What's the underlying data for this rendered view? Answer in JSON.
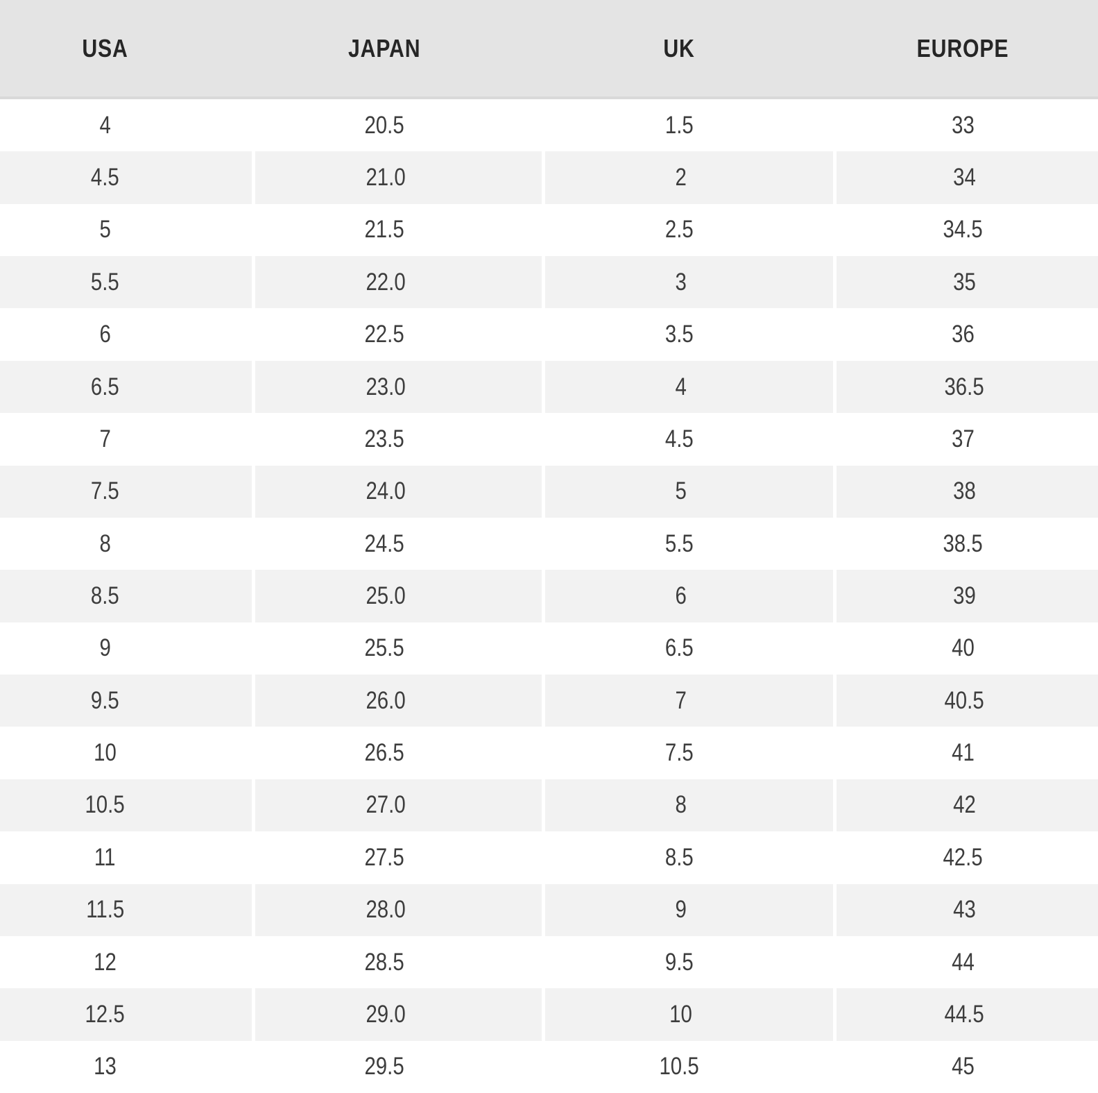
{
  "table": {
    "headers": [
      "USA",
      "JAPAN",
      "UK",
      "EUROPE"
    ],
    "rows": [
      [
        "4",
        "20.5",
        "1.5",
        "33"
      ],
      [
        "4.5",
        "21.0",
        "2",
        "34"
      ],
      [
        "5",
        "21.5",
        "2.5",
        "34.5"
      ],
      [
        "5.5",
        "22.0",
        "3",
        "35"
      ],
      [
        "6",
        "22.5",
        "3.5",
        "36"
      ],
      [
        "6.5",
        "23.0",
        "4",
        "36.5"
      ],
      [
        "7",
        "23.5",
        "4.5",
        "37"
      ],
      [
        "7.5",
        "24.0",
        "5",
        "38"
      ],
      [
        "8",
        "24.5",
        "5.5",
        "38.5"
      ],
      [
        "8.5",
        "25.0",
        "6",
        "39"
      ],
      [
        "9",
        "25.5",
        "6.5",
        "40"
      ],
      [
        "9.5",
        "26.0",
        "7",
        "40.5"
      ],
      [
        "10",
        "26.5",
        "7.5",
        "41"
      ],
      [
        "10.5",
        "27.0",
        "8",
        "42"
      ],
      [
        "11",
        "27.5",
        "8.5",
        "42.5"
      ],
      [
        "11.5",
        "28.0",
        "9",
        "43"
      ],
      [
        "12",
        "28.5",
        "9.5",
        "44"
      ],
      [
        "12.5",
        "29.0",
        "10",
        "44.5"
      ],
      [
        "13",
        "29.5",
        "10.5",
        "45"
      ]
    ]
  },
  "colors": {
    "header_bg": "#e4e4e4",
    "header_border": "#d9d9d9",
    "header_text": "#262626",
    "row_bg": "#ffffff",
    "row_alt_bg": "#f2f2f2",
    "cell_text": "#3d3d3d"
  }
}
